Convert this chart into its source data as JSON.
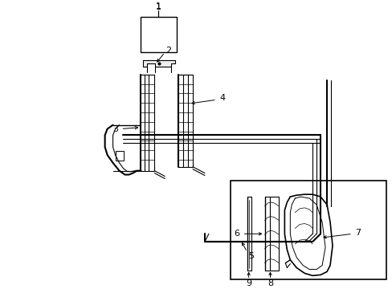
{
  "bg_color": "#ffffff",
  "line_color": "#000000",
  "fig_width": 4.89,
  "fig_height": 3.6
}
